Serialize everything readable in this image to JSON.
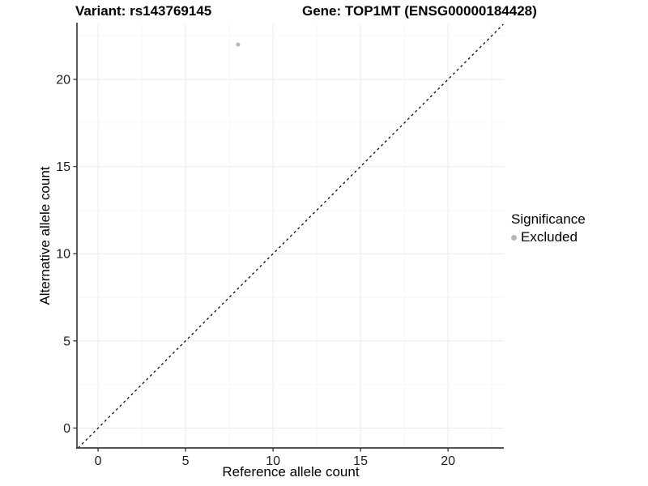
{
  "chart_data": {
    "type": "scatter",
    "title_left": "Variant: rs143769145",
    "title_right": "Gene: TOP1MT (ENSG00000184428)",
    "xlabel": "Reference allele count",
    "ylabel": "Alternative allele count",
    "xlim": [
      -1.16,
      23.19
    ],
    "ylim": [
      -1.14,
      23.16
    ],
    "xticks": [
      0,
      5,
      10,
      15,
      20
    ],
    "yticks": [
      0,
      5,
      10,
      15,
      20
    ],
    "xminor": [
      2.5,
      7.5,
      12.5,
      17.5,
      22.5
    ],
    "yminor": [
      2.5,
      7.5,
      12.5,
      17.5,
      22.5
    ],
    "grid": "major+minor",
    "series": [
      {
        "name": "Excluded",
        "color": "#b8b8b8",
        "points": [
          {
            "x": 8,
            "y": 22
          }
        ]
      }
    ],
    "reference_line": {
      "type": "identity y=x",
      "style": "dashed",
      "color": "#000000"
    },
    "legend": {
      "position": "right",
      "title": "Significance",
      "items": [
        {
          "label": "Excluded",
          "color": "#b8b8b8"
        }
      ]
    },
    "colors": {
      "grid_major": "#ebebeb",
      "grid_minor": "#f5f5f5",
      "axis_line": "#3d3d3d",
      "tick_text": "#1f1f1f"
    }
  }
}
